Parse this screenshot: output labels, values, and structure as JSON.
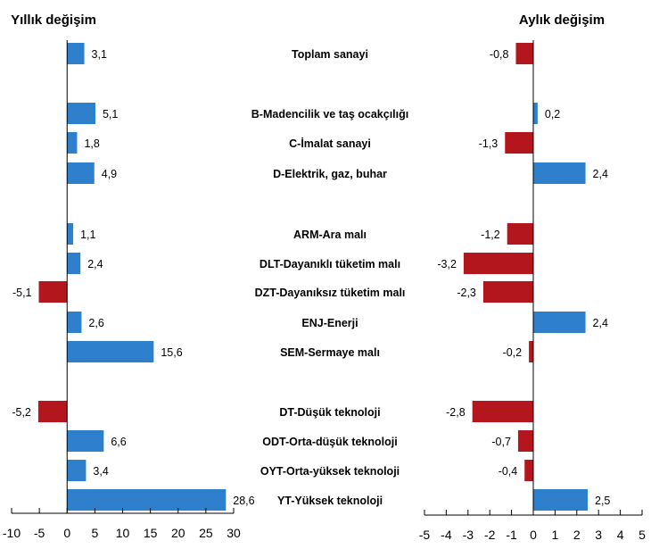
{
  "chart_data": [
    {
      "type": "bar",
      "orientation": "horizontal",
      "title": "Yıllık değişim",
      "categories": [
        "Toplam sanayi",
        "B-Madencilik ve taş ocakçılığı",
        "C-İmalat sanayi",
        "D-Elektrik, gaz, buhar",
        "ARM-Ara malı",
        "DLT-Dayanıklı tüketim malı",
        "DZT-Dayanıksız tüketim malı",
        "ENJ-Enerji",
        "SEM-Sermaye malı",
        "DT-Düşük teknoloji",
        "ODT-Orta-düşük teknoloji",
        "OYT-Orta-yüksek teknoloji",
        "YT-Yüksek teknoloji"
      ],
      "values": [
        3.1,
        5.1,
        1.8,
        4.9,
        1.1,
        2.4,
        -5.1,
        2.6,
        15.6,
        -5.2,
        6.6,
        3.4,
        28.6
      ],
      "labels": [
        "3,1",
        "5,1",
        "1,8",
        "4,9",
        "1,1",
        "2,4",
        "-5,1",
        "2,6",
        "15,6",
        "-5,2",
        "6,6",
        "3,4",
        "28,6"
      ],
      "xlim": [
        -10,
        30
      ],
      "ticks": [
        "-10",
        "-5",
        "0",
        "5",
        "10",
        "15",
        "20",
        "25",
        "30"
      ],
      "tick_values": [
        -10,
        -5,
        0,
        5,
        10,
        15,
        20,
        25,
        30
      ]
    },
    {
      "type": "bar",
      "orientation": "horizontal",
      "title": "Aylık değişim",
      "values": [
        -0.8,
        0.2,
        -1.3,
        2.4,
        -1.2,
        -3.2,
        -2.3,
        2.4,
        -0.2,
        -2.8,
        -0.7,
        -0.4,
        2.5
      ],
      "labels": [
        "-0,8",
        "0,2",
        "-1,3",
        "2,4",
        "-1,2",
        "-3,2",
        "-2,3",
        "2,4",
        "-0,2",
        "-2,8",
        "-0,7",
        "-0,4",
        "2,5"
      ],
      "xlim": [
        -5,
        5
      ],
      "ticks": [
        "-5",
        "-4",
        "-3",
        "-2",
        "-1",
        "0",
        "1",
        "2",
        "3",
        "4",
        "5"
      ],
      "tick_values": [
        -5,
        -4,
        -3,
        -2,
        -1,
        0,
        1,
        2,
        3,
        4,
        5
      ]
    }
  ],
  "colors": {
    "positive": "#2f80cc",
    "negative": "#b3161d"
  }
}
